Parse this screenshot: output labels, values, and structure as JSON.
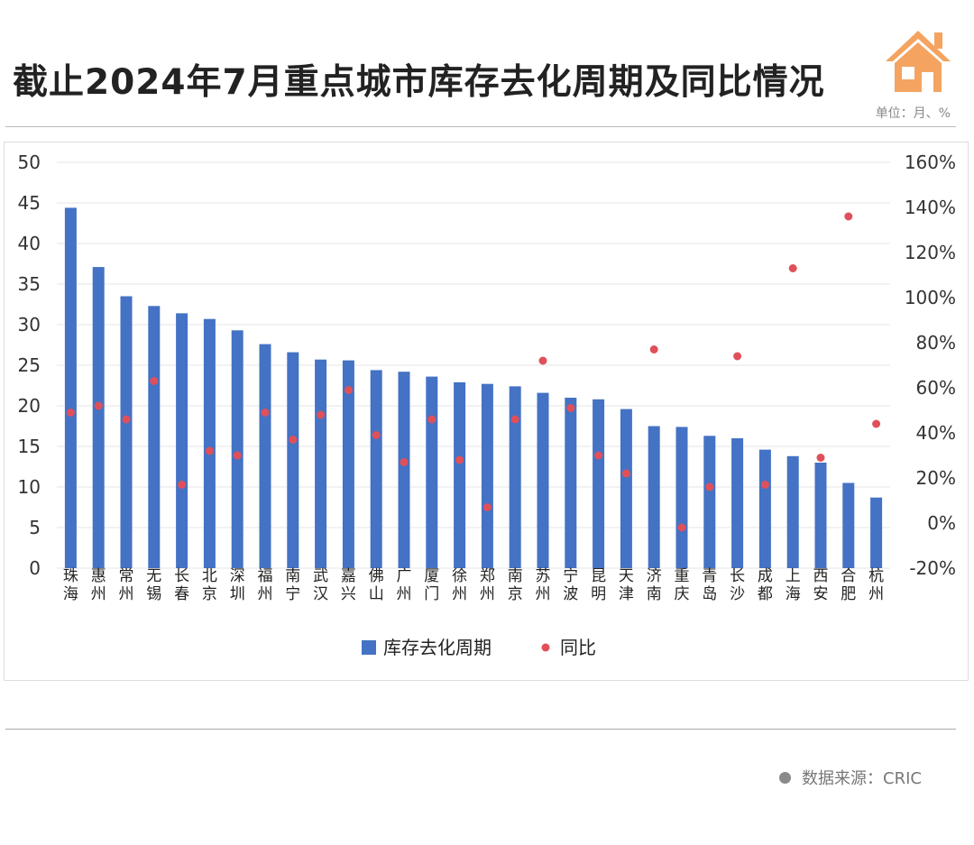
{
  "title": "截止2024年7月重点城市库存去化周期及同比情况",
  "unit": "单位：月、%",
  "source": "数据来源：CRIC",
  "colors": {
    "bar": "#4472c4",
    "dot": "#e0505a",
    "logo": "#f4a460"
  },
  "chart_data": {
    "type": "bar",
    "categories": [
      "珠海",
      "惠州",
      "常州",
      "无锡",
      "长春",
      "北京",
      "深圳",
      "福州",
      "南宁",
      "武汉",
      "嘉兴",
      "佛山",
      "广州",
      "厦门",
      "徐州",
      "郑州",
      "南京",
      "苏州",
      "宁波",
      "昆明",
      "天津",
      "济南",
      "重庆",
      "青岛",
      "长沙",
      "成都",
      "上海",
      "西安",
      "合肥",
      "杭州"
    ],
    "series": [
      {
        "name": "库存去化周期",
        "type": "bar",
        "axis": "left",
        "values": [
          44.4,
          37.1,
          33.5,
          32.3,
          31.4,
          30.7,
          29.3,
          27.6,
          26.6,
          25.7,
          25.6,
          24.4,
          24.2,
          23.6,
          22.9,
          22.7,
          22.4,
          21.6,
          21.0,
          20.8,
          19.6,
          17.5,
          17.4,
          16.3,
          16.0,
          14.6,
          13.8,
          13.0,
          10.5,
          8.7
        ]
      },
      {
        "name": "同比",
        "type": "scatter",
        "axis": "right",
        "values": [
          49,
          52,
          46,
          63,
          17,
          32,
          30,
          49,
          37,
          48,
          59,
          39,
          27,
          46,
          28,
          7,
          46,
          72,
          51,
          30,
          22,
          77,
          -2,
          16,
          74,
          17,
          113,
          29,
          136,
          44
        ]
      }
    ],
    "y_left": {
      "min": 0,
      "max": 50,
      "step": 5,
      "ticks": [
        "0",
        "5",
        "10",
        "15",
        "20",
        "25",
        "30",
        "35",
        "40",
        "45",
        "50"
      ]
    },
    "y_right": {
      "min": -20,
      "max": 160,
      "step": 20,
      "ticks": [
        "-20%",
        "0%",
        "20%",
        "40%",
        "60%",
        "80%",
        "100%",
        "120%",
        "140%",
        "160%"
      ]
    },
    "grid": true,
    "legend_position": "bottom-center",
    "legend": [
      {
        "label": "库存去化周期",
        "marker": "bar"
      },
      {
        "label": "同比",
        "marker": "dot"
      }
    ]
  }
}
